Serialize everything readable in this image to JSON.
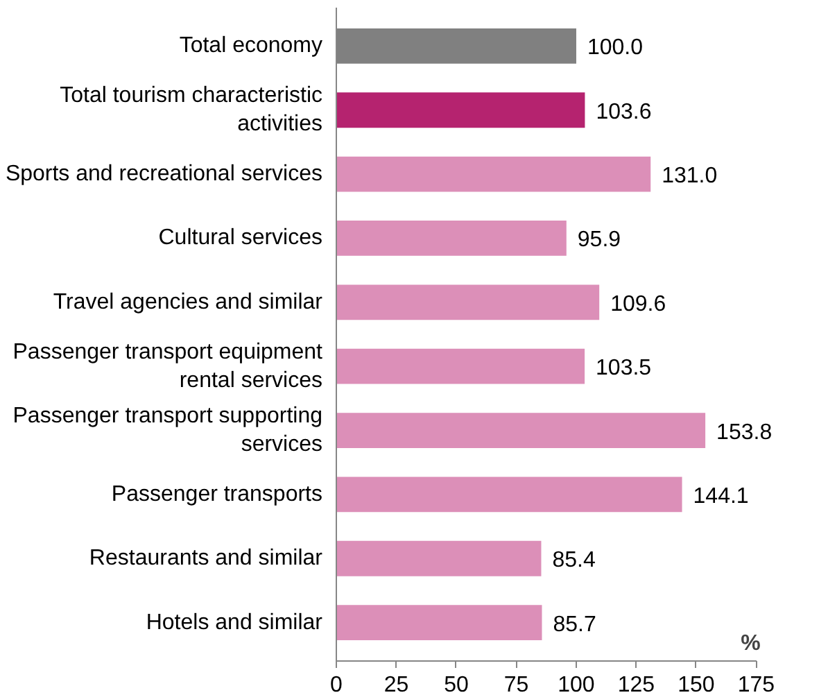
{
  "chart_data": {
    "type": "bar",
    "orientation": "horizontal",
    "xlabel": "%",
    "categories": [
      "Total economy",
      "Total tourism characteristic activities",
      "Sports and recreational services",
      "Cultural services",
      "Travel agencies and similar",
      "Passenger transport equipment rental services",
      "Passenger transport supporting services",
      "Passenger transports",
      "Restaurants and similar",
      "Hotels and similar"
    ],
    "values": [
      100.0,
      103.6,
      131.0,
      95.9,
      109.6,
      103.5,
      153.8,
      144.1,
      85.4,
      85.7
    ],
    "value_labels": [
      "100.0",
      "103.6",
      "131.0",
      "95.9",
      "109.6",
      "103.5",
      "153.8",
      "144.1",
      "85.4",
      "85.7"
    ],
    "colors": [
      "#808080",
      "#b5236f",
      "#dc8fb8",
      "#dc8fb8",
      "#dc8fb8",
      "#dc8fb8",
      "#dc8fb8",
      "#dc8fb8",
      "#dc8fb8",
      "#dc8fb8"
    ],
    "xlim": [
      0,
      175
    ],
    "xticks": [
      0,
      25,
      50,
      75,
      100,
      125,
      150,
      175
    ],
    "grid": false
  }
}
